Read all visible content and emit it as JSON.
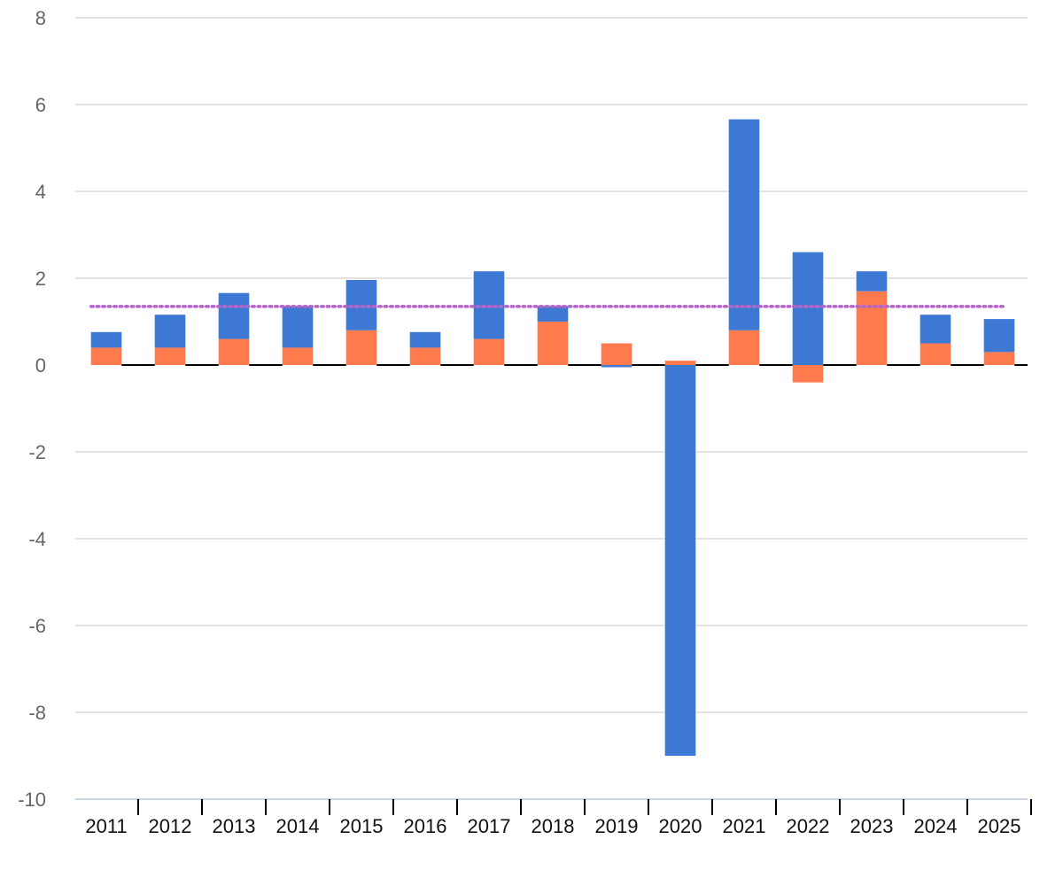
{
  "chart_data": {
    "type": "bar",
    "stacked": true,
    "categories": [
      "2011",
      "2012",
      "2013",
      "2014",
      "2015",
      "2016",
      "2017",
      "2018",
      "2019",
      "2020",
      "2021",
      "2022",
      "2023",
      "2024",
      "2025"
    ],
    "series": [
      {
        "color": "#FF7A4D",
        "values": [
          0.4,
          0.4,
          0.6,
          0.4,
          0.8,
          0.4,
          0.6,
          1.0,
          0.5,
          0.1,
          0.8,
          -0.4,
          1.7,
          0.5,
          0.3
        ]
      },
      {
        "color": "#3D79D4",
        "values": [
          0.4,
          0.8,
          1.1,
          1.0,
          1.2,
          0.4,
          1.6,
          0.4,
          -0.05,
          -9.0,
          4.9,
          2.6,
          0.5,
          0.7,
          0.8
        ]
      }
    ],
    "reference_line": {
      "value": 1.35,
      "color": "#B366C8",
      "style": "dotted"
    },
    "ylim": [
      -10,
      8
    ],
    "yticks": [
      "8",
      "6",
      "4",
      "2",
      "0",
      "-2",
      "-4",
      "-6",
      "-8",
      "-10"
    ],
    "grid": true,
    "legend": "none",
    "title": "",
    "xlabel": "",
    "ylabel": ""
  }
}
